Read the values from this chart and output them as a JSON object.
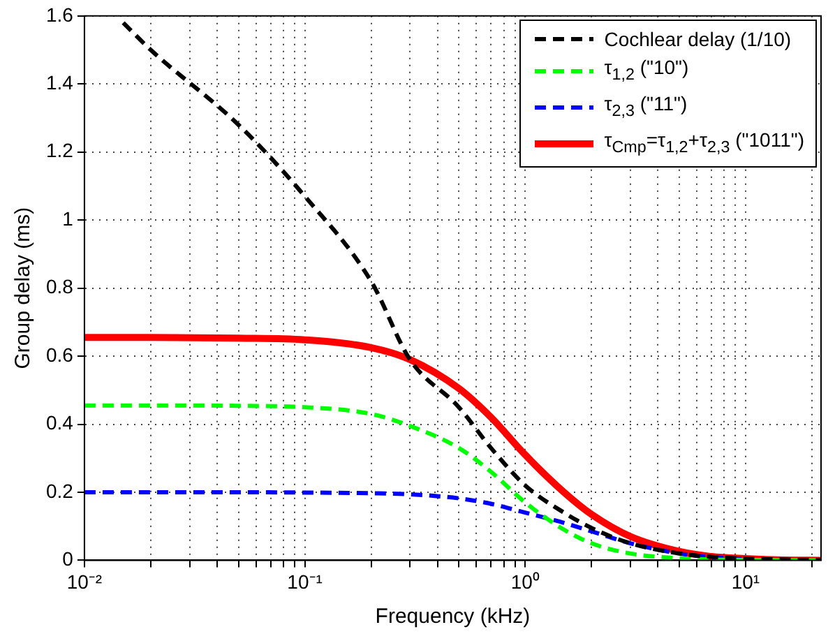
{
  "chart_data": {
    "type": "line",
    "xlabel": "Frequency (kHz)",
    "ylabel": "Group delay (ms)",
    "log": "x",
    "grid": true,
    "legend": "top right",
    "marker": "none",
    "xlim": [
      0.01,
      22
    ],
    "ylim": [
      0,
      1.6
    ],
    "xticks": [
      {
        "value": 0.01,
        "label": "10⁻²"
      },
      {
        "value": 0.02,
        "label": null
      },
      {
        "value": 0.03,
        "label": null
      },
      {
        "value": 0.04,
        "label": null
      },
      {
        "value": 0.05,
        "label": null
      },
      {
        "value": 0.06,
        "label": null
      },
      {
        "value": 0.07,
        "label": null
      },
      {
        "value": 0.08,
        "label": null
      },
      {
        "value": 0.09,
        "label": null
      },
      {
        "value": 0.1,
        "label": "10⁻¹"
      },
      {
        "value": 0.2,
        "label": null
      },
      {
        "value": 0.3,
        "label": null
      },
      {
        "value": 0.4,
        "label": null
      },
      {
        "value": 0.5,
        "label": null
      },
      {
        "value": 0.6,
        "label": null
      },
      {
        "value": 0.7,
        "label": null
      },
      {
        "value": 0.8,
        "label": null
      },
      {
        "value": 0.9,
        "label": null
      },
      {
        "value": 1,
        "label": "10⁰"
      },
      {
        "value": 2,
        "label": null
      },
      {
        "value": 3,
        "label": null
      },
      {
        "value": 4,
        "label": null
      },
      {
        "value": 5,
        "label": null
      },
      {
        "value": 6,
        "label": null
      },
      {
        "value": 7,
        "label": null
      },
      {
        "value": 8,
        "label": null
      },
      {
        "value": 9,
        "label": null
      },
      {
        "value": 10,
        "label": "10¹"
      },
      {
        "value": 20,
        "label": null
      }
    ],
    "yticks": [
      0,
      0.2,
      0.4,
      0.6,
      0.8,
      1,
      1.2,
      1.4,
      1.6
    ],
    "x": [
      0.01,
      0.02,
      0.05,
      0.1,
      0.2,
      0.3,
      0.5,
      0.7,
      1,
      1.5,
      2,
      3,
      5,
      7,
      10,
      15,
      22
    ],
    "series": [
      {
        "name": "Cochlear delay (1/10)",
        "color": "#000000",
        "line_style": "dashed",
        "x": [
          0.015,
          0.02,
          0.05,
          0.1,
          0.2,
          0.3,
          0.5,
          0.7,
          1,
          1.5,
          2,
          3,
          5,
          7,
          10,
          15,
          22
        ],
        "values": [
          1.58,
          1.5,
          1.28,
          1.07,
          0.82,
          0.59,
          0.45,
          0.33,
          0.22,
          0.14,
          0.095,
          0.05,
          0.02,
          0.01,
          0.005,
          0.002,
          0.001
        ]
      },
      {
        "name": "τ$_{1,2}$ (\"10\")",
        "color": "#00ff00",
        "line_style": "dashed",
        "values": [
          0.455,
          0.455,
          0.454,
          0.45,
          0.43,
          0.395,
          0.33,
          0.26,
          0.17,
          0.09,
          0.05,
          0.02,
          0.006,
          0.002,
          0.001,
          0,
          0
        ]
      },
      {
        "name": "τ$_{2,3}$ (\"11\")",
        "color": "#0000ff",
        "line_style": "dashed",
        "values": [
          0.2,
          0.2,
          0.2,
          0.199,
          0.197,
          0.194,
          0.182,
          0.166,
          0.14,
          0.11,
          0.085,
          0.05,
          0.02,
          0.009,
          0.004,
          null,
          null
        ]
      },
      {
        "name": "τ$_{Cmp}$=τ$_{1,2}$+τ$_{2,3}$ (\"1011\")",
        "color": "#ff0000",
        "line_style": "solid",
        "values": [
          0.655,
          0.655,
          0.653,
          0.648,
          0.625,
          0.59,
          0.505,
          0.42,
          0.31,
          0.2,
          0.135,
          0.07,
          0.026,
          0.011,
          0.005,
          0.001,
          0
        ]
      }
    ]
  }
}
